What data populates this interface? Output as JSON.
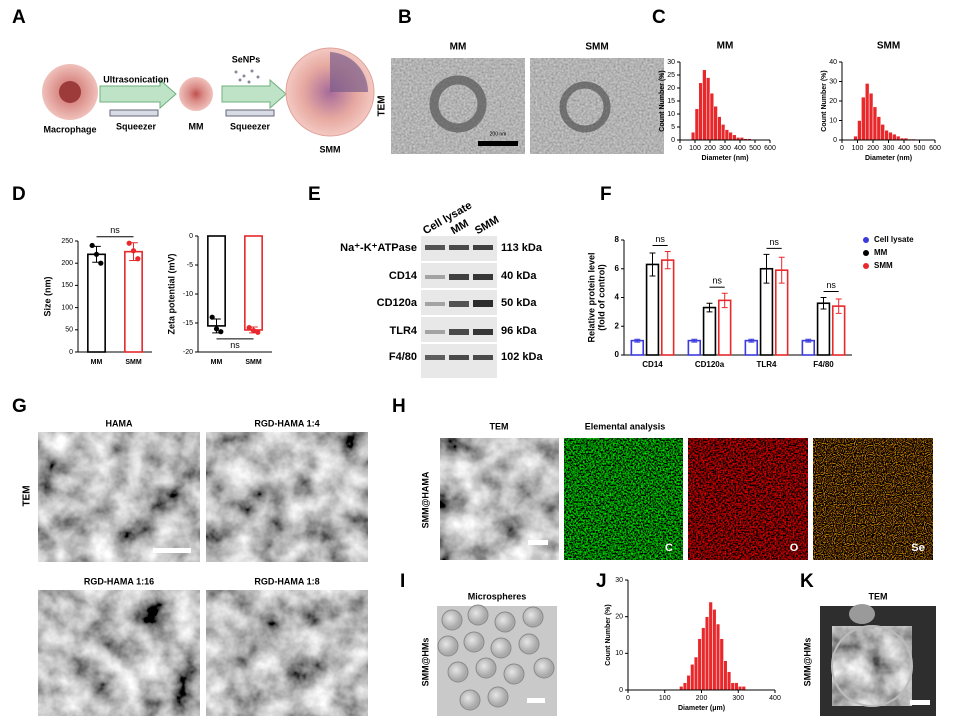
{
  "panel_labels": [
    "A",
    "B",
    "C",
    "D",
    "E",
    "F",
    "G",
    "H",
    "I",
    "J",
    "K"
  ],
  "schematic": {
    "process": "Ultrasonication",
    "reagent": "SeNPs",
    "cell": "Macrophage",
    "tool_1": "Squeezer",
    "tool_2": "Squeezer",
    "product_1": "MM",
    "product_2": "SMM"
  },
  "panel_b": {
    "method": "TEM",
    "images": [
      "MM",
      "SMM"
    ],
    "scale_bar": "200 nm"
  },
  "western_blot": {
    "lanes": [
      "Cell lysate",
      "MM",
      "SMM"
    ],
    "bands": [
      {
        "protein": "Na⁺-K⁺ATPase",
        "size": "113 kDa"
      },
      {
        "protein": "CD14",
        "size": "40 kDa"
      },
      {
        "protein": "CD120a",
        "size": "50 kDa"
      },
      {
        "protein": "TLR4",
        "size": "96 kDa"
      },
      {
        "protein": "F4/80",
        "size": "102 kDa"
      }
    ]
  },
  "panel_g": {
    "method": "TEM",
    "images": [
      "HAMA",
      "RGD-HAMA 1:4",
      "RGD-HAMA 1:16",
      "RGD-HAMA 1:8"
    ]
  },
  "panel_h": {
    "sample": "SMM@HAMA",
    "method": "TEM",
    "analysis": "Elemental analysis",
    "elements": [
      "C",
      "O",
      "Se"
    ]
  },
  "panel_i": {
    "sample": "SMM@HMs",
    "title": "Microspheres"
  },
  "panel_k": {
    "sample": "SMM@HMs",
    "method": "TEM"
  },
  "chart_data": [
    {
      "type": "histogram",
      "title": "MM",
      "x_label": "Diameter (nm)",
      "y_label": "Count Number (%)",
      "color": "#e8282b",
      "bins": [
        75,
        100,
        125,
        150,
        175,
        200,
        225,
        250,
        275,
        300,
        325,
        350,
        375,
        400,
        425,
        450,
        475
      ],
      "values": [
        3,
        12,
        22,
        27,
        24,
        18,
        13,
        9,
        6,
        4,
        3,
        2,
        1,
        1,
        0.5,
        0.5
      ],
      "xlim": [
        0,
        600
      ],
      "xticks": [
        0,
        100,
        200,
        300,
        400,
        500,
        600
      ],
      "ylim": [
        0,
        30
      ],
      "yticks": [
        0,
        5,
        10,
        15,
        20,
        25,
        30
      ]
    },
    {
      "type": "histogram",
      "title": "SMM",
      "x_label": "Diameter (nm)",
      "y_label": "Count Number (%)",
      "color": "#e8282b",
      "bins": [
        75,
        100,
        125,
        150,
        175,
        200,
        225,
        250,
        275,
        300,
        325,
        350,
        375,
        400,
        425,
        450,
        475
      ],
      "values": [
        2,
        10,
        22,
        29,
        24,
        17,
        12,
        8,
        5,
        4,
        3,
        2,
        1,
        1,
        0.5,
        0.5
      ],
      "xlim": [
        0,
        600
      ],
      "xticks": [
        0,
        100,
        200,
        300,
        400,
        500,
        600
      ],
      "ylim": [
        0,
        40
      ],
      "yticks": [
        0,
        10,
        20,
        30,
        40
      ]
    },
    {
      "type": "bar",
      "y_label": "Size (nm)",
      "categories": [
        "MM",
        "SMM"
      ],
      "colors": [
        "#000000",
        "#e8282b"
      ],
      "values": [
        220,
        226
      ],
      "errors": [
        18,
        20
      ],
      "points": [
        [
          240,
          220,
          200
        ],
        [
          245,
          228,
          210
        ]
      ],
      "ylim": [
        0,
        250
      ],
      "yticks": [
        0,
        50,
        100,
        150,
        200,
        250
      ],
      "annotations": [
        "ns"
      ]
    },
    {
      "type": "bar",
      "y_label": "Zeta potential (mV)",
      "categories": [
        "MM",
        "SMM"
      ],
      "colors": [
        "#000000",
        "#e8282b"
      ],
      "values": [
        -15.5,
        -16.2
      ],
      "errors": [
        1.2,
        0.5
      ],
      "points": [
        [
          -14,
          -16,
          -16.5
        ],
        [
          -15.8,
          -16.3,
          -16.6
        ]
      ],
      "ylim": [
        -20,
        0
      ],
      "yticks": [
        0,
        -5,
        -10,
        -15,
        -20
      ],
      "annotations": [
        "ns"
      ]
    },
    {
      "type": "bar",
      "y_label": [
        "Relative protein level",
        "(fold of control)"
      ],
      "categories": [
        "CD14",
        "CD120a",
        "TLR4",
        "F4/80"
      ],
      "series": [
        {
          "name": "Cell lysate",
          "color": "#3b3bdb",
          "values": [
            1,
            1,
            1,
            1
          ],
          "errors": [
            0.1,
            0.1,
            0.1,
            0.1
          ]
        },
        {
          "name": "MM",
          "color": "#000000",
          "values": [
            6.3,
            3.3,
            6.0,
            3.6
          ],
          "errors": [
            0.8,
            0.3,
            1.0,
            0.4
          ]
        },
        {
          "name": "SMM",
          "color": "#e8282b",
          "values": [
            6.6,
            3.8,
            5.9,
            3.4
          ],
          "errors": [
            0.6,
            0.5,
            0.9,
            0.5
          ]
        }
      ],
      "ylim": [
        0,
        8
      ],
      "yticks": [
        0,
        2,
        4,
        6,
        8
      ],
      "annotations": [
        "ns",
        "ns",
        "ns",
        "ns"
      ],
      "legend": "right"
    },
    {
      "type": "histogram",
      "x_label": "Diameter (μm)",
      "y_label": "Count Number (%)",
      "color": "#e8282b",
      "bins": [
        140,
        150,
        160,
        170,
        180,
        190,
        200,
        210,
        220,
        230,
        240,
        250,
        260,
        270,
        280,
        290,
        300,
        310,
        320
      ],
      "values": [
        1,
        2,
        4,
        7,
        9,
        14,
        17,
        20,
        24,
        22,
        18,
        14,
        8,
        5,
        2,
        2,
        1,
        1
      ],
      "xlim": [
        0,
        400
      ],
      "xticks": [
        0,
        100,
        200,
        300,
        400
      ],
      "ylim": [
        0,
        30
      ],
      "yticks": [
        0,
        10,
        20,
        30
      ]
    }
  ]
}
